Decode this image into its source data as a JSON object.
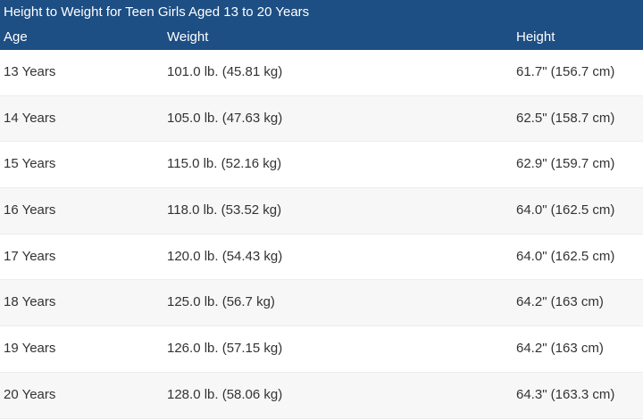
{
  "table": {
    "title": "Height to Weight for Teen Girls Aged 13 to 20 Years",
    "header": [
      "Age",
      "Weight",
      "Height"
    ],
    "rows": [
      [
        "13 Years",
        "101.0 lb. (45.81 kg)",
        "61.7\" (156.7 cm)"
      ],
      [
        "14 Years",
        "105.0 lb. (47.63 kg)",
        "62.5\" (158.7 cm)"
      ],
      [
        "15 Years",
        "115.0 lb. (52.16 kg)",
        "62.9\" (159.7 cm)"
      ],
      [
        "16 Years",
        "118.0 lb. (53.52 kg)",
        "64.0\" (162.5 cm)"
      ],
      [
        "17 Years",
        "120.0 lb. (54.43 kg)",
        "64.0\" (162.5 cm)"
      ],
      [
        "18 Years",
        "125.0 lb. (56.7 kg)",
        "64.2\" (163 cm)"
      ],
      [
        "19 Years",
        "126.0 lb. (57.15 kg)",
        "64.2\" (163 cm)"
      ],
      [
        "20 Years",
        "128.0 lb. (58.06 kg)",
        "64.3\" (163.3 cm)"
      ]
    ]
  }
}
